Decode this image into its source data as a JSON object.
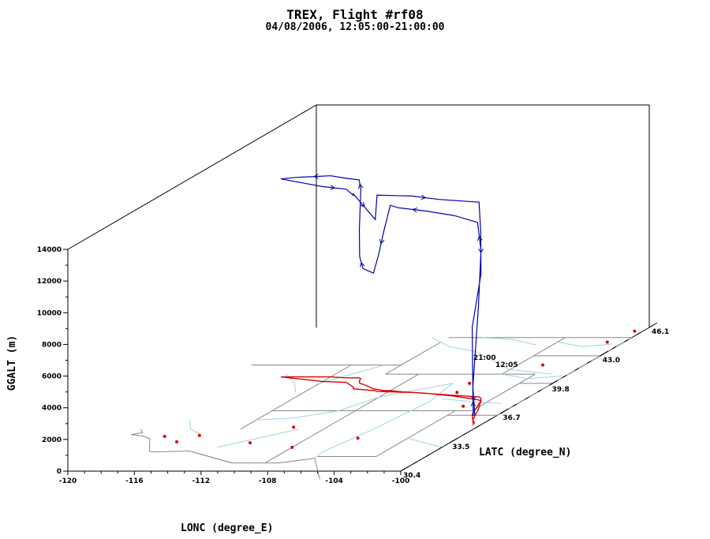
{
  "chart_data": {
    "type": "line",
    "title": "TREX, Flight #rf08",
    "subtitle": "04/08/2006, 12:05:00-21:00:00",
    "xlabel": "LONC (degree_E)",
    "ylabel": "LATC (degree_N)",
    "zlabel": "GGALT (m)",
    "x_ticks": [
      "-120",
      "-116",
      "-112",
      "-108",
      "-104",
      "-100"
    ],
    "y_ticks": [
      "30.4",
      "33.5",
      "36.7",
      "39.8",
      "43.0",
      "46.1"
    ],
    "z_ticks": [
      "0",
      "2000",
      "4000",
      "6000",
      "8000",
      "10000",
      "12000",
      "14000"
    ],
    "xlim": [
      -120,
      -100
    ],
    "ylim": [
      30.4,
      46.1
    ],
    "zlim": [
      0,
      14000
    ],
    "time_labels": [
      "12:05",
      "21:00"
    ],
    "track_color": "#0000aa",
    "ground_track_color": "#dd0000",
    "map_color": "#9fd3e0",
    "border_color": "#888888",
    "series": [
      {
        "values": [
          {
            "lon": -100.4,
            "lat": 35.4,
            "alt": 600
          },
          {
            "lon": -101.0,
            "lat": 36.0,
            "alt": 2000
          },
          {
            "lon": -101.8,
            "lat": 37.2,
            "alt": 6500
          },
          {
            "lon": -102.5,
            "lat": 38.1,
            "alt": 9500
          },
          {
            "lon": -102.8,
            "lat": 38.2,
            "alt": 11200
          },
          {
            "lon": -104.6,
            "lat": 38.6,
            "alt": 11400
          },
          {
            "lon": -106.5,
            "lat": 38.9,
            "alt": 11500
          },
          {
            "lon": -108.4,
            "lat": 39.1,
            "alt": 11600
          },
          {
            "lon": -109.0,
            "lat": 39.2,
            "alt": 11700
          },
          {
            "lon": -109.4,
            "lat": 39.2,
            "alt": 10000
          },
          {
            "lon": -109.8,
            "lat": 39.3,
            "alt": 8500
          },
          {
            "lon": -110.2,
            "lat": 39.4,
            "alt": 7300
          },
          {
            "lon": -111.3,
            "lat": 39.9,
            "alt": 7300
          },
          {
            "lon": -111.6,
            "lat": 40.0,
            "alt": 8000
          },
          {
            "lon": -111.9,
            "lat": 40.3,
            "alt": 9500
          },
          {
            "lon": -112.0,
            "lat": 40.5,
            "alt": 12000
          },
          {
            "lon": -112.2,
            "lat": 40.6,
            "alt": 12500
          },
          {
            "lon": -113.0,
            "lat": 40.6,
            "alt": 12600
          },
          {
            "lon": -114.0,
            "lat": 40.7,
            "alt": 12700
          },
          {
            "lon": -116.0,
            "lat": 40.7,
            "alt": 12600
          },
          {
            "lon": -117.0,
            "lat": 40.7,
            "alt": 12500
          },
          {
            "lon": -114.0,
            "lat": 40.2,
            "alt": 12300
          },
          {
            "lon": -112.5,
            "lat": 40.1,
            "alt": 12200
          },
          {
            "lon": -111.6,
            "lat": 39.6,
            "alt": 12100
          },
          {
            "lon": -111.4,
            "lat": 39.4,
            "alt": 12300
          },
          {
            "lon": -109.9,
            "lat": 39.2,
            "alt": 10800
          },
          {
            "lon": -109.7,
            "lat": 39.1,
            "alt": 12400
          },
          {
            "lon": -107.5,
            "lat": 39.0,
            "alt": 12400
          },
          {
            "lon": -105.7,
            "lat": 38.8,
            "alt": 12300
          },
          {
            "lon": -103.0,
            "lat": 38.5,
            "alt": 12300
          },
          {
            "lon": -102.8,
            "lat": 38.4,
            "alt": 10500
          },
          {
            "lon": -102.5,
            "lat": 38.1,
            "alt": 8000
          },
          {
            "lon": -101.6,
            "lat": 36.6,
            "alt": 5500
          },
          {
            "lon": -101.0,
            "lat": 36.0,
            "alt": 2200
          },
          {
            "lon": -100.5,
            "lat": 35.6,
            "alt": 500
          }
        ]
      }
    ]
  }
}
